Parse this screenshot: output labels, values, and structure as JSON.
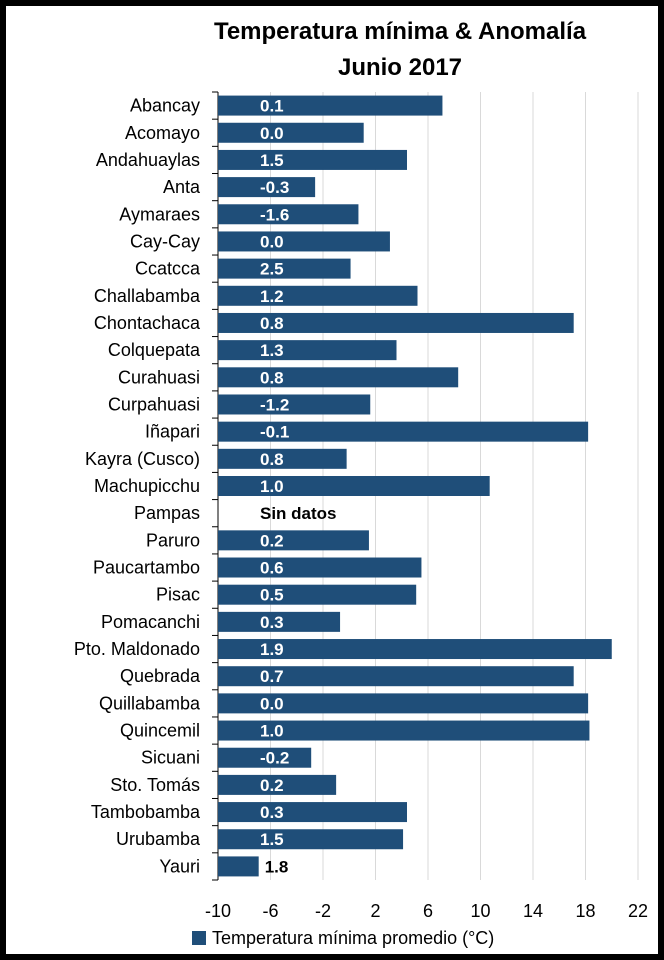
{
  "chart_data": {
    "type": "bar",
    "orientation": "horizontal",
    "title": "Temperatura mínima & Anomalía",
    "subtitle": "Junio 2017",
    "xlim": [
      -10,
      22
    ],
    "xticks": [
      "-10",
      "-6",
      "-2",
      "2",
      "6",
      "10",
      "14",
      "18",
      "22"
    ],
    "grid": true,
    "legend_position": "bottom",
    "bar_color": "#1F4E79",
    "categories": [
      "Abancay",
      "Acomayo",
      "Andahuaylas",
      "Anta",
      "Aymaraes",
      "Cay-Cay",
      "Ccatcca",
      "Challabamba",
      "Chontachaca",
      "Colquepata",
      "Curahuasi",
      "Curpahuasi",
      "Iñapari",
      "Kayra (Cusco)",
      "Machupicchu",
      "Pampas",
      "Paruro",
      "Paucartambo",
      "Pisac",
      "Pomacanchi",
      "Pto. Maldonado",
      "Quebrada",
      "Quillabamba",
      "Quincemil",
      "Sicuani",
      "Sto. Tomás",
      "Tambobamba",
      "Urubamba",
      "Yauri"
    ],
    "series": [
      {
        "name": "Temperatura mínima promedio (°C)",
        "values": [
          7.1,
          1.1,
          4.4,
          -2.6,
          0.7,
          3.1,
          0.1,
          5.2,
          17.1,
          3.6,
          8.3,
          1.6,
          18.2,
          -0.2,
          10.7,
          null,
          1.5,
          5.5,
          5.1,
          -0.7,
          20.0,
          17.1,
          18.2,
          18.3,
          -2.9,
          -1.0,
          4.4,
          4.1,
          -6.9
        ]
      }
    ],
    "anomaly_labels": [
      "0.1",
      "0.0",
      "1.5",
      "-0.3",
      "-1.6",
      "0.0",
      "2.5",
      "1.2",
      "0.8",
      "1.3",
      "0.8",
      "-1.2",
      "-0.1",
      "0.8",
      "1.0",
      "Sin datos",
      "0.2",
      "0.6",
      "0.5",
      "0.3",
      "1.9",
      "0.7",
      "0.0",
      "1.0",
      "-0.2",
      "0.2",
      "0.3",
      "1.5",
      "1.8"
    ]
  }
}
